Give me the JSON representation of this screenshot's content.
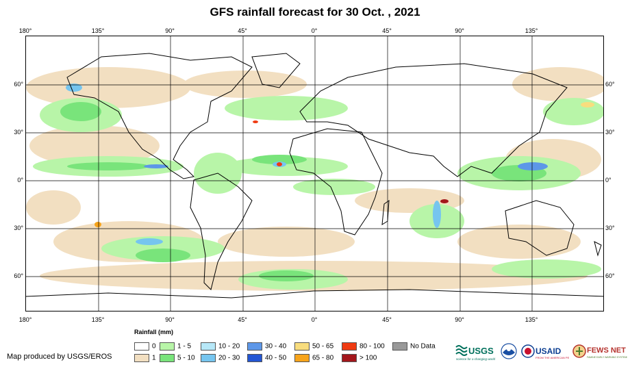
{
  "title": "GFS rainfall forecast for 30 Oct. , 2021",
  "axes": {
    "lon_labels": [
      "180°",
      "135°",
      "90°",
      "45°",
      "0°",
      "45°",
      "90°",
      "135°"
    ],
    "lat_labels": [
      "60°",
      "30°",
      "0°",
      "30°",
      "60°"
    ]
  },
  "legend": {
    "title": "Rainfall (mm)",
    "items": [
      {
        "label": "0",
        "color": "#ffffff"
      },
      {
        "label": "1",
        "color": "#f2dfc1"
      },
      {
        "label": "1 - 5",
        "color": "#b8f5a8"
      },
      {
        "label": "5 - 10",
        "color": "#79e47b"
      },
      {
        "label": "10 - 20",
        "color": "#b7e8f8"
      },
      {
        "label": "20 - 30",
        "color": "#76c5ef"
      },
      {
        "label": "30 - 40",
        "color": "#5d97e8"
      },
      {
        "label": "40 - 50",
        "color": "#2356d4"
      },
      {
        "label": "50 - 65",
        "color": "#f8dd7e"
      },
      {
        "label": "65 - 80",
        "color": "#f7a41b"
      },
      {
        "label": "80 - 100",
        "color": "#ef3a11"
      },
      {
        "label": "> 100",
        "color": "#a3161b"
      },
      {
        "label": "No Data",
        "color": "#999999"
      }
    ]
  },
  "credit": "Map produced by USGS/EROS",
  "logos": {
    "usgs": {
      "text": "USGS",
      "tagline": "science for a changing world",
      "color": "#00705c"
    },
    "usaid": {
      "text": "USAID",
      "tagline": "FROM THE AMERICAN PEOPLE",
      "color": "#0b3d91"
    },
    "fewsnet": {
      "text": "FEWS NET",
      "tagline": "FAMINE EARLY WARNING SYSTEMS NETWORK",
      "color": "#b5332e"
    }
  }
}
